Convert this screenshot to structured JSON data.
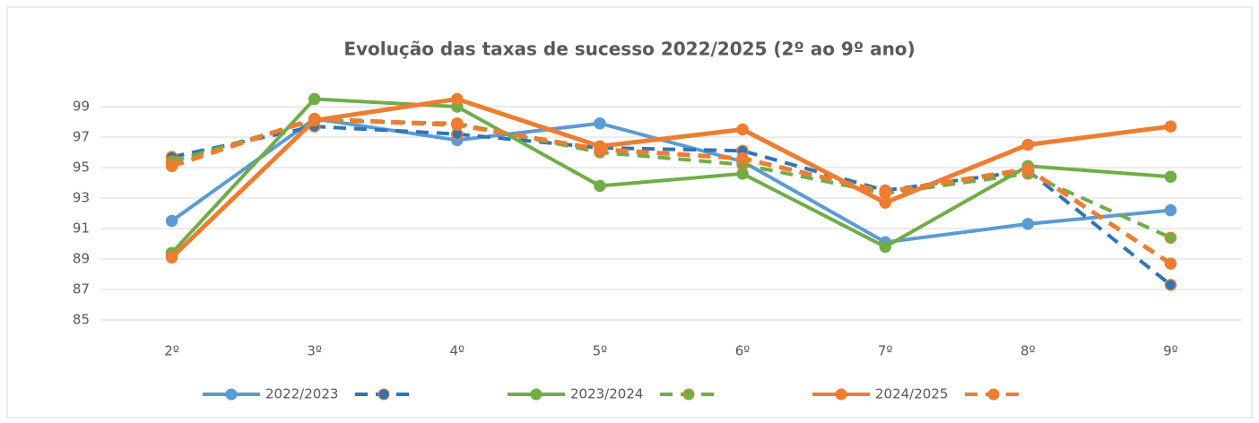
{
  "chart_data": {
    "type": "line",
    "title": "Evolução das taxas de sucesso 2022/2025 (2º ao 9º ano)",
    "categories": [
      "2º",
      "3º",
      "4º",
      "5º",
      "6º",
      "7º",
      "8º",
      "9º"
    ],
    "ylim": [
      85,
      100
    ],
    "yticks": [
      85,
      87,
      89,
      91,
      93,
      95,
      97,
      99
    ],
    "grid": true,
    "legend": "bottom",
    "series": [
      {
        "name": "2022/2023",
        "color": "#5b9bd5",
        "dashed": false,
        "values": [
          91.5,
          98.2,
          96.8,
          97.9,
          95.4,
          90.1,
          91.3,
          92.2
        ]
      },
      {
        "color": "#2e75b6",
        "dashed": true,
        "values": [
          95.7,
          97.7,
          97.2,
          96.3,
          96.1,
          93.5,
          94.8,
          87.3
        ]
      },
      {
        "name": "2023/2024",
        "color": "#70ad47",
        "dashed": false,
        "values": [
          89.4,
          99.5,
          99.0,
          93.8,
          94.6,
          89.8,
          95.1,
          94.4
        ]
      },
      {
        "color": "#70ad47",
        "dashed": true,
        "values": [
          95.4,
          98.1,
          97.9,
          96.0,
          95.2,
          93.3,
          94.6,
          90.4
        ]
      },
      {
        "name": "2024/2025",
        "color": "#ed7d31",
        "dashed": false,
        "values": [
          89.1,
          98.1,
          99.5,
          96.4,
          97.5,
          92.7,
          96.5,
          97.7
        ]
      },
      {
        "color": "#ed7d31",
        "dashed": true,
        "values": [
          95.1,
          98.2,
          97.8,
          96.2,
          95.6,
          93.4,
          94.9,
          88.7
        ]
      }
    ]
  }
}
